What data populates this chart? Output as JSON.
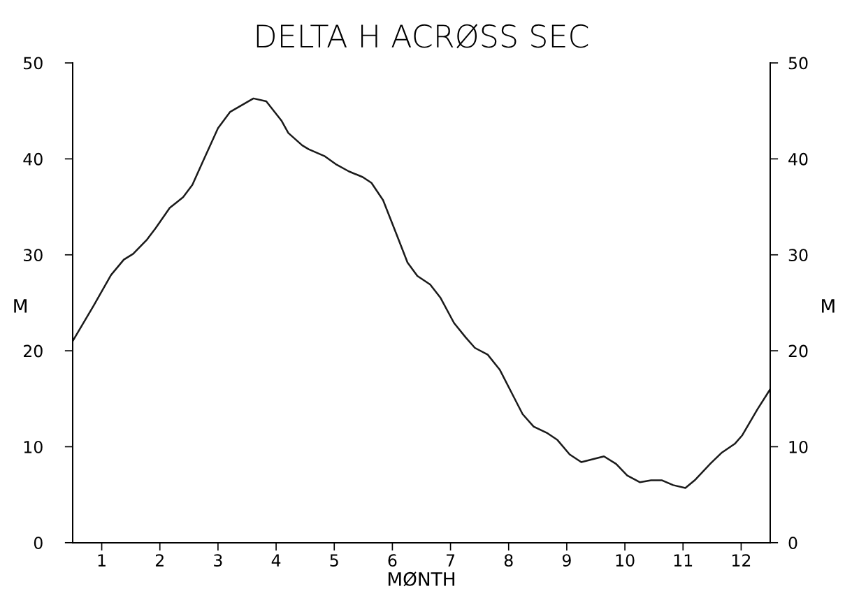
{
  "chart_data": {
    "type": "line",
    "title": "DELTA H ACRØSS SEC",
    "xlabel": "MØNTH",
    "ylabel": "M",
    "y2label": "M",
    "xlim": [
      0.5,
      12.5
    ],
    "xticks": [
      1,
      2,
      3,
      4,
      5,
      6,
      7,
      8,
      9,
      10,
      11,
      12
    ],
    "ylim": [
      0,
      50
    ],
    "yticks": [
      0,
      10,
      20,
      30,
      40,
      50
    ],
    "y2lim": [
      0,
      50
    ],
    "y2ticks": [
      0,
      10,
      20,
      30,
      40,
      50
    ],
    "grid": false,
    "marker": "none",
    "line_style": "solid",
    "series": [
      {
        "color": "#1a1a1a",
        "x": [
          0.5,
          0.86,
          1.16,
          1.38,
          1.54,
          1.78,
          1.93,
          2.17,
          2.4,
          2.56,
          2.73,
          3.0,
          3.21,
          3.61,
          3.83,
          4.09,
          4.21,
          4.45,
          4.56,
          4.83,
          5.04,
          5.25,
          5.49,
          5.64,
          5.84,
          6.08,
          6.26,
          6.43,
          6.65,
          6.83,
          7.06,
          7.26,
          7.42,
          7.64,
          7.85,
          8.07,
          8.24,
          8.43,
          8.67,
          8.84,
          9.05,
          9.25,
          9.45,
          9.64,
          9.85,
          10.04,
          10.26,
          10.45,
          10.64,
          10.83,
          11.04,
          11.2,
          11.48,
          11.67,
          11.89,
          12.02,
          12.28,
          12.5
        ],
        "values": [
          21.0,
          24.7,
          27.9,
          29.5,
          30.1,
          31.6,
          32.8,
          34.9,
          36.0,
          37.3,
          39.6,
          43.2,
          44.9,
          46.3,
          46.0,
          44.0,
          42.7,
          41.4,
          41.0,
          40.3,
          39.4,
          38.7,
          38.1,
          37.5,
          35.7,
          32.0,
          29.2,
          27.8,
          26.9,
          25.5,
          22.9,
          21.4,
          20.3,
          19.6,
          18.0,
          15.4,
          13.4,
          12.1,
          11.4,
          10.7,
          9.2,
          8.4,
          8.7,
          9.0,
          8.2,
          7.0,
          6.3,
          6.5,
          6.5,
          6.0,
          5.7,
          6.5,
          8.3,
          9.4,
          10.3,
          11.2,
          13.9,
          16.0
        ]
      }
    ]
  }
}
